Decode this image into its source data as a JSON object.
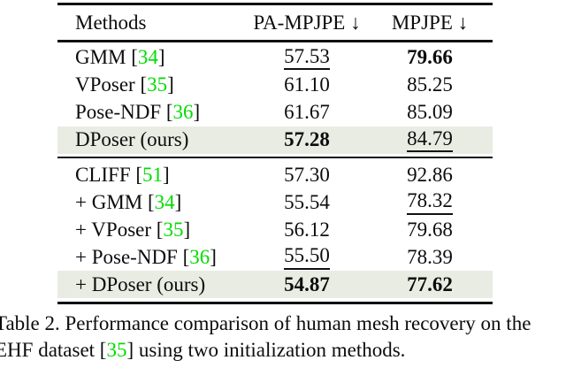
{
  "colors": {
    "citation_green": "#00dc00",
    "highlight_row": "#e9ece3"
  },
  "table": {
    "header": {
      "methods": "Methods",
      "col_pa": "PA-MPJPE ↓",
      "col_mpjpe": "MPJPE ↓"
    },
    "rows": [
      {
        "pre": "GMM [",
        "cite": "34",
        "post": "]",
        "pa": "57.53",
        "mp": "79.66"
      },
      {
        "pre": "VPoser [",
        "cite": "35",
        "post": "]",
        "pa": "61.10",
        "mp": "85.25"
      },
      {
        "pre": "Pose-NDF [",
        "cite": "36",
        "post": "]",
        "pa": "61.67",
        "mp": "85.09"
      },
      {
        "pre": "DPoser (ours)",
        "cite": "",
        "post": "",
        "pa": "57.28",
        "mp": "84.79"
      },
      {
        "pre": "CLIFF [",
        "cite": "51",
        "post": "]",
        "pa": "57.30",
        "mp": "92.86"
      },
      {
        "pre": "+ GMM [",
        "cite": "34",
        "post": "]",
        "pa": "55.54",
        "mp": "78.32"
      },
      {
        "pre": "+ VPoser [",
        "cite": "35",
        "post": "]",
        "pa": "56.12",
        "mp": "79.68"
      },
      {
        "pre": "+ Pose-NDF [",
        "cite": "36",
        "post": "]",
        "pa": "55.50",
        "mp": "78.39"
      },
      {
        "pre": "+ DPoser (ours)",
        "cite": "",
        "post": "",
        "pa": "54.87",
        "mp": "77.62"
      }
    ]
  },
  "caption": {
    "line1": "Table 2. Performance comparison of human mesh recovery on the",
    "line2_pre": "EHF dataset [",
    "line2_cite": "35",
    "line2_post": "] using two initialization methods."
  }
}
